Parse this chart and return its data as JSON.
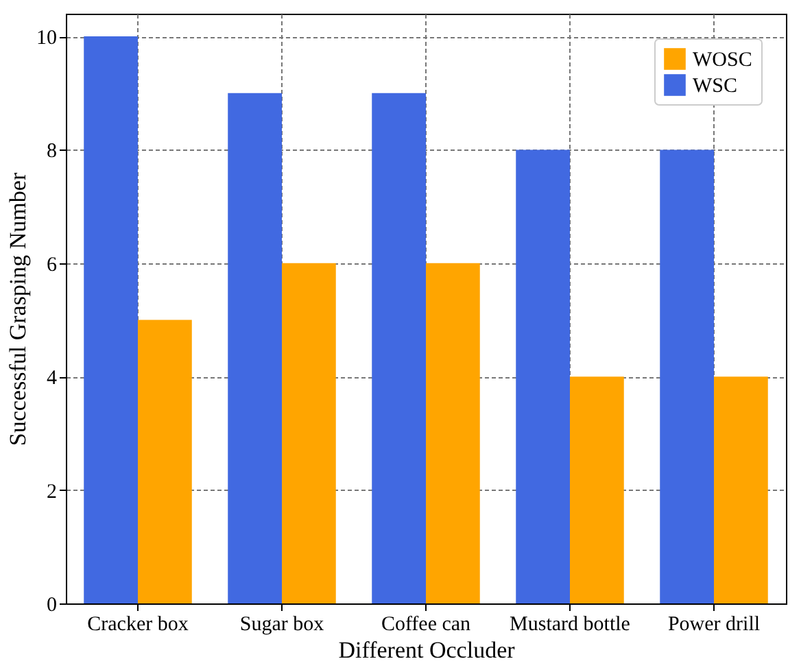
{
  "chart_data": {
    "type": "bar",
    "xlabel": "Different Occluder",
    "ylabel": "Successful Grasping Number",
    "categories": [
      "Cracker box",
      "Sugar box",
      "Coffee can",
      "Mustard bottle",
      "Power drill"
    ],
    "series": [
      {
        "name": "WSC",
        "color": "#4169e1",
        "values": [
          10,
          9,
          9,
          8,
          8
        ]
      },
      {
        "name": "WOSC",
        "color": "#ffa500",
        "values": [
          5,
          6,
          6,
          4,
          4
        ]
      }
    ],
    "ylim": [
      0,
      10.4
    ],
    "yticks": [
      0,
      2,
      4,
      6,
      8,
      10
    ],
    "grid": true,
    "legend": "top right"
  }
}
